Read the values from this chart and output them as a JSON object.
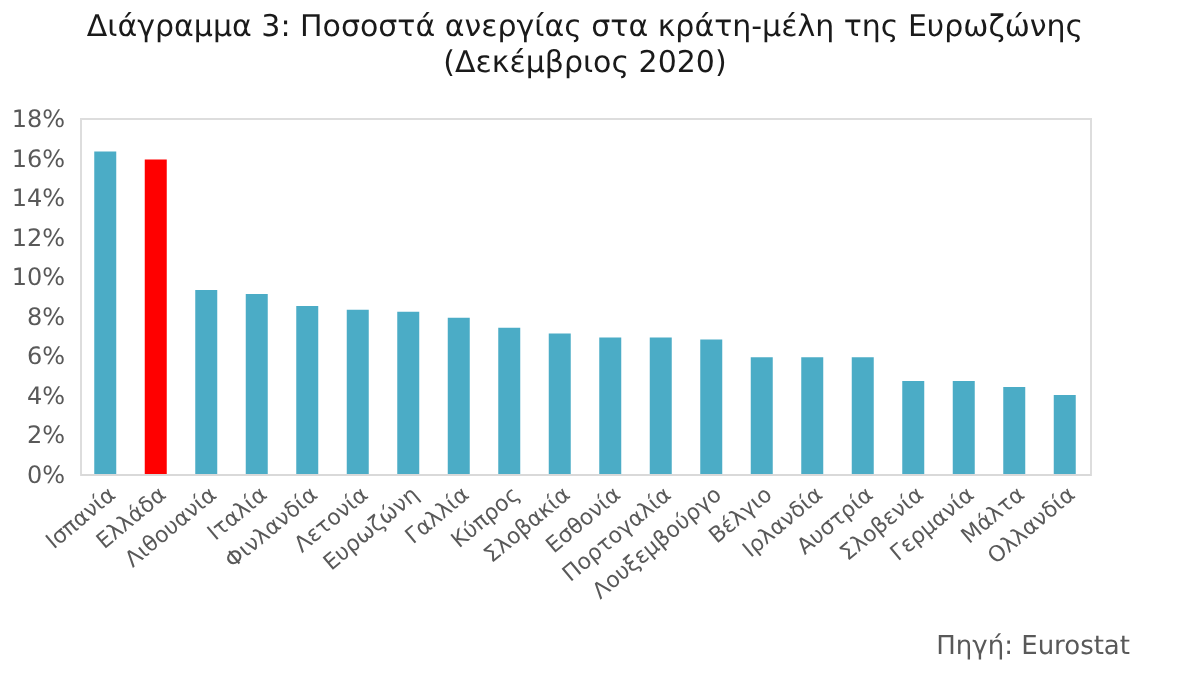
{
  "chart_data": {
    "type": "bar",
    "title": "Διάγραμμα 3: Ποσοστά ανεργίας στα κράτη-μέλη της Ευρωζώνης",
    "subtitle": "(Δεκέμβριος 2020)",
    "categories": [
      "Ισπανία",
      "Ελλάδα",
      "Λιθουανία",
      "Ιταλία",
      "Φινλανδία",
      "Λετονία",
      "Ευρωζώνη",
      "Γαλλία",
      "Κύπρος",
      "Σλοβακία",
      "Εσθονία",
      "Πορτογαλία",
      "Λουξεμβούργο",
      "Βέλγιο",
      "Ιρλανδία",
      "Αυστρία",
      "Σλοβενία",
      "Γερμανία",
      "Μάλτα",
      "Ολλανδία"
    ],
    "values": [
      16.3,
      15.9,
      9.3,
      9.1,
      8.5,
      8.3,
      8.2,
      7.9,
      7.4,
      7.1,
      6.9,
      6.9,
      6.8,
      5.9,
      5.9,
      5.9,
      4.7,
      4.7,
      4.4,
      4.0
    ],
    "colors": [
      "#4bacc6",
      "#ff0000",
      "#4bacc6",
      "#4bacc6",
      "#4bacc6",
      "#4bacc6",
      "#4bacc6",
      "#4bacc6",
      "#4bacc6",
      "#4bacc6",
      "#4bacc6",
      "#4bacc6",
      "#4bacc6",
      "#4bacc6",
      "#4bacc6",
      "#4bacc6",
      "#4bacc6",
      "#4bacc6",
      "#4bacc6",
      "#4bacc6"
    ],
    "ylim": [
      0,
      18
    ],
    "yticks": [
      {
        "value": 0,
        "label": "0%"
      },
      {
        "value": 2,
        "label": "2%"
      },
      {
        "value": 4,
        "label": "4%"
      },
      {
        "value": 6,
        "label": "6%"
      },
      {
        "value": 8,
        "label": "8%"
      },
      {
        "value": 10,
        "label": "10%"
      },
      {
        "value": 12,
        "label": "12%"
      },
      {
        "value": 14,
        "label": "14%"
      },
      {
        "value": 16,
        "label": "16%"
      },
      {
        "value": 18,
        "label": "18%"
      }
    ],
    "grid": false,
    "annotations": [
      "Πηγή: Eurostat"
    ]
  }
}
